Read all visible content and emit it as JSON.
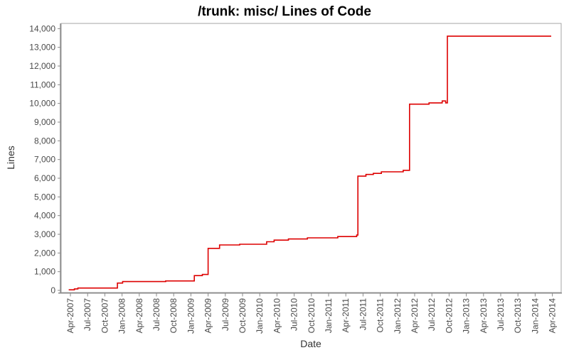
{
  "page": {
    "title": "/trunk: misc/ Lines of Code"
  },
  "chart_data": {
    "type": "line",
    "line_style": "step-after",
    "title": "/trunk: misc/ Lines of Code",
    "xlabel": "Date",
    "ylabel": "Lines",
    "grid": false,
    "legend_position": "none",
    "line_color": "#dd0000",
    "plot_border_color": "#a6a6a6",
    "axis_line_color": "#8a8a8a",
    "tick_text_color": "#4a4a4a",
    "x_range": [
      "Apr-2007",
      "Apr-2014"
    ],
    "ylim": [
      0,
      14000
    ],
    "y_tick_step": 1000,
    "y_tick_labels": [
      "0",
      "1,000",
      "2,000",
      "3,000",
      "4,000",
      "5,000",
      "6,000",
      "7,000",
      "8,000",
      "9,000",
      "10,000",
      "11,000",
      "12,000",
      "13,000",
      "14,000"
    ],
    "x_tick_labels": [
      "Apr-2007",
      "Jul-2007",
      "Oct-2007",
      "Jan-2008",
      "Apr-2008",
      "Jul-2008",
      "Oct-2008",
      "Jan-2009",
      "Apr-2009",
      "Jul-2009",
      "Oct-2009",
      "Jan-2010",
      "Apr-2010",
      "Jul-2010",
      "Oct-2010",
      "Jan-2011",
      "Apr-2011",
      "Jul-2011",
      "Oct-2011",
      "Jan-2012",
      "Apr-2012",
      "Jul-2012",
      "Oct-2012",
      "Jan-2013",
      "Apr-2013",
      "Jul-2013",
      "Oct-2013",
      "Jan-2014",
      "Apr-2014"
    ],
    "x_tick_rotation_degrees": -90,
    "x_unit": "months since Apr-2007 (0 = Apr-2007, 3 per quarter, 84 = Apr-2014)",
    "series": [
      {
        "name": "/trunk: misc/ lines of code",
        "points": [
          [
            -0.3,
            30
          ],
          [
            0.7,
            80
          ],
          [
            1.3,
            125
          ],
          [
            8.2,
            390
          ],
          [
            9.1,
            470
          ],
          [
            16.6,
            505
          ],
          [
            21.6,
            790
          ],
          [
            23.0,
            850
          ],
          [
            24.0,
            2250
          ],
          [
            26.0,
            2430
          ],
          [
            29.5,
            2470
          ],
          [
            34.2,
            2600
          ],
          [
            35.5,
            2690
          ],
          [
            38.0,
            2750
          ],
          [
            41.3,
            2810
          ],
          [
            46.6,
            2880
          ],
          [
            49.9,
            2960
          ],
          [
            50.1,
            6110
          ],
          [
            51.5,
            6200
          ],
          [
            52.8,
            6260
          ],
          [
            54.2,
            6340
          ],
          [
            58.0,
            6420
          ],
          [
            59.1,
            9960
          ],
          [
            62.5,
            10030
          ],
          [
            64.8,
            10130
          ],
          [
            65.4,
            10030
          ],
          [
            65.7,
            13600
          ],
          [
            83.8,
            13600
          ]
        ]
      }
    ]
  }
}
